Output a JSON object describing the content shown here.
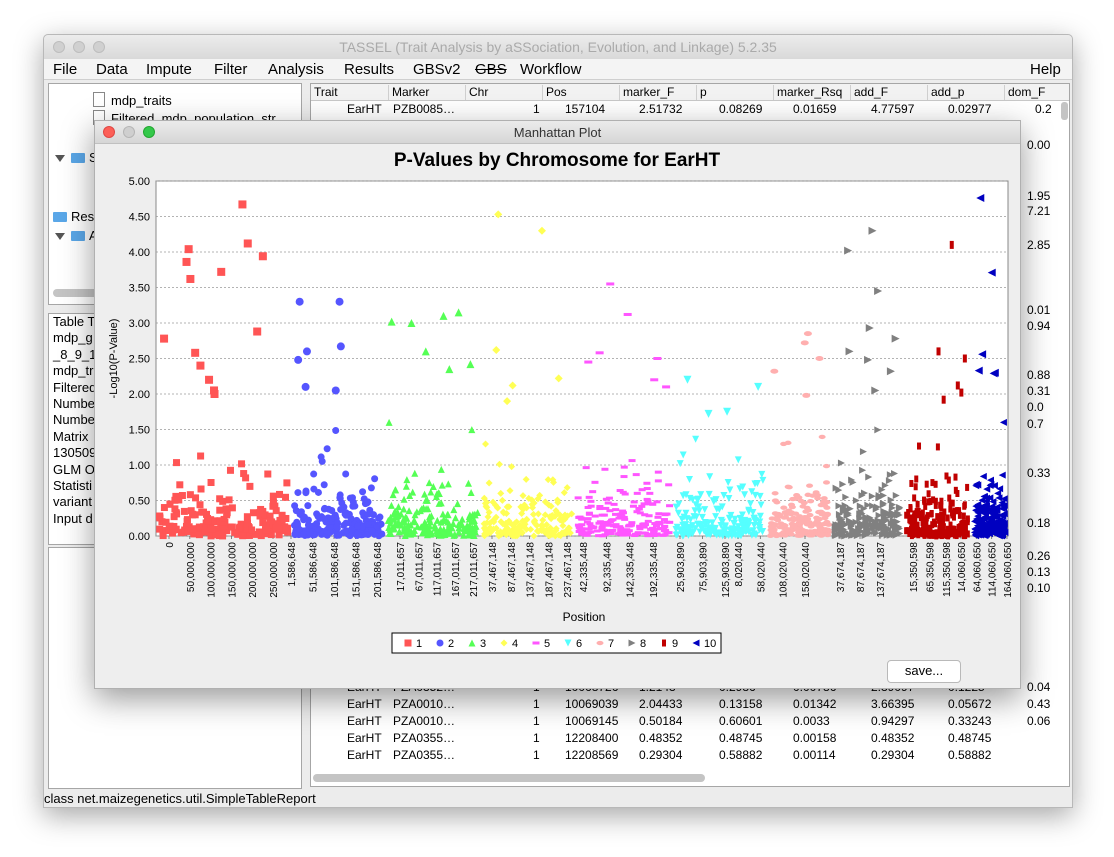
{
  "app": {
    "title": "TASSEL (Trait Analysis by aSSociation, Evolution, and Linkage) 5.2.35",
    "menu": [
      "File",
      "Data",
      "Impute",
      "Filter",
      "Analysis",
      "Results",
      "GBSv2",
      "GBS",
      "Workflow",
      "Help"
    ],
    "status_bar": "class net.maizegenetics.util.SimpleTableReport"
  },
  "tree": {
    "items": [
      {
        "label": "mdp_traits",
        "kind": "file"
      },
      {
        "label": "Filtered_mdp_population_str",
        "kind": "file"
      },
      {
        "label": "S",
        "kind": "folder"
      },
      {
        "label": "Resu",
        "kind": "folder"
      },
      {
        "label": "A",
        "kind": "folder"
      }
    ]
  },
  "info_panel": {
    "lines": [
      "Table T",
      "mdp_g",
      "_8_9_1",
      "mdp_tr",
      "Filtered",
      "Numbe",
      "Numbe",
      "Matrix",
      "130509",
      "GLM O",
      "Statisti",
      "variant",
      "Input d"
    ]
  },
  "table": {
    "columns": [
      "Trait",
      "Marker",
      "Chr",
      "Pos",
      "marker_F",
      "p",
      "marker_Rsq",
      "add_F",
      "add_p",
      "dom_F"
    ],
    "top_row": [
      "EarHT",
      "PZB0085…",
      "1",
      "157104",
      "2.51732",
      "0.08269",
      "0.01659",
      "4.77597",
      "0.02977",
      "0.2"
    ],
    "right_partial": [
      "0.00",
      "1.95",
      "7.21",
      "2.85",
      "0.01",
      "0.94",
      "0.88",
      "0.31",
      "0.0",
      "0.7",
      "0.33",
      "0.18",
      "0.26",
      "0.13",
      "0.10"
    ],
    "bottom_rows": [
      [
        "EarHT",
        "PZA0352…",
        "1",
        "10068726",
        "1.2143",
        "0.2986",
        "0.00786",
        "2.39097",
        "0.1225",
        "0.04"
      ],
      [
        "EarHT",
        "PZA0010…",
        "1",
        "10069039",
        "2.04433",
        "0.13158",
        "0.01342",
        "3.66395",
        "0.05672",
        "0.43"
      ],
      [
        "EarHT",
        "PZA0010…",
        "1",
        "10069145",
        "0.50184",
        "0.60601",
        "0.0033",
        "0.94297",
        "0.33243",
        "0.06"
      ],
      [
        "EarHT",
        "PZA0355…",
        "1",
        "12208400",
        "0.48352",
        "0.48745",
        "0.00158",
        "0.48352",
        "0.48745",
        ""
      ],
      [
        "EarHT",
        "PZA0355…",
        "1",
        "12208569",
        "0.29304",
        "0.58882",
        "0.00114",
        "0.29304",
        "0.58882",
        ""
      ]
    ]
  },
  "manhattan_window": {
    "title": "Manhattan Plot",
    "save_label": "save..."
  },
  "chart_data": {
    "type": "scatter",
    "title": "P-Values by Chromosome for EarHT",
    "xlabel": "Position",
    "ylabel": "-Log10(P-Value)",
    "ylim": [
      0,
      5
    ],
    "y_ticks": [
      "0.00",
      "0.50",
      "1.00",
      "1.50",
      "2.00",
      "2.50",
      "3.00",
      "3.50",
      "4.00",
      "4.50",
      "5.00"
    ],
    "grid": true,
    "legend_placement": "bottom",
    "x_tick_labels": [
      {
        "chr": "1",
        "labels": [
          "0",
          "50,000,000",
          "100,000,000",
          "150,000,000",
          "200,000,000",
          "250,000,000"
        ]
      },
      {
        "chr": "2",
        "labels": [
          "1,586,648",
          "51,586,648",
          "101,586,648",
          "151,586,648",
          "201,586,648"
        ]
      },
      {
        "chr": "3",
        "labels": [
          "17,011,657",
          "67,011,657",
          "117,011,657",
          "167,011,657",
          "217,011,657"
        ]
      },
      {
        "chr": "4",
        "labels": [
          "37,467,148",
          "87,467,148",
          "137,467,148",
          "187,467,148",
          "237,467,148"
        ]
      },
      {
        "chr": "5",
        "labels": [
          "42,335,448",
          "92,335,448",
          "142,335,448",
          "192,335,448"
        ]
      },
      {
        "chr": "6",
        "labels": [
          "25,903,890",
          "75,903,890",
          "125,903,890"
        ]
      },
      {
        "chr": "7",
        "labels": [
          "8,020,440",
          "58,020,440",
          "108,020,440",
          "158,020,440"
        ]
      },
      {
        "chr": "8",
        "labels": [
          "37,674,187",
          "87,674,187",
          "137,674,187"
        ]
      },
      {
        "chr": "9",
        "labels": [
          "15,350,598",
          "65,350,598",
          "115,350,598"
        ]
      },
      {
        "chr": "10",
        "labels": [
          "14,060,650",
          "64,060,650",
          "114,060,650",
          "164,060,650"
        ]
      }
    ],
    "series": [
      {
        "name": "1",
        "color": "#ff5555",
        "marker": "square",
        "highlights": [
          3.86,
          4.12,
          3.94,
          4.67,
          4.04,
          3.72,
          3.62,
          2.88,
          2.78,
          2.58,
          2.4,
          2.2,
          2.05,
          2.0
        ]
      },
      {
        "name": "2",
        "color": "#5555ff",
        "marker": "circle",
        "highlights": [
          3.3,
          3.3,
          2.67,
          2.6,
          2.48,
          2.1,
          2.05
        ]
      },
      {
        "name": "3",
        "color": "#55ff55",
        "marker": "triangle-up",
        "highlights": [
          3.15,
          3.1,
          3.02,
          3.0,
          2.6,
          2.42,
          2.35
        ]
      },
      {
        "name": "4",
        "color": "#ffff55",
        "marker": "diamond",
        "highlights": [
          4.53,
          4.3,
          2.62,
          2.22,
          2.12,
          1.9
        ]
      },
      {
        "name": "5",
        "color": "#ff55ff",
        "marker": "dash",
        "highlights": [
          3.55,
          3.12,
          2.58,
          2.5,
          2.45,
          2.2,
          2.1
        ]
      },
      {
        "name": "6",
        "color": "#55ffff",
        "marker": "triangle-down",
        "highlights": [
          2.2,
          2.1,
          1.75,
          1.72
        ]
      },
      {
        "name": "7",
        "color": "#ffafaf",
        "marker": "ellipse",
        "highlights": [
          2.85,
          2.72,
          2.5,
          2.32,
          1.98
        ]
      },
      {
        "name": "8",
        "color": "#808080",
        "marker": "triangle-right",
        "highlights": [
          4.3,
          4.02,
          3.45,
          2.93,
          2.78,
          2.6,
          2.48,
          2.32,
          2.05
        ]
      },
      {
        "name": "9",
        "color": "#c00000",
        "marker": "bar",
        "highlights": [
          4.1,
          2.6,
          2.5,
          2.12,
          2.02,
          1.92
        ]
      },
      {
        "name": "10",
        "color": "#0000c0",
        "marker": "triangle-left",
        "highlights": [
          4.76,
          3.71,
          2.56,
          2.33,
          2.3,
          2.29
        ]
      }
    ]
  }
}
